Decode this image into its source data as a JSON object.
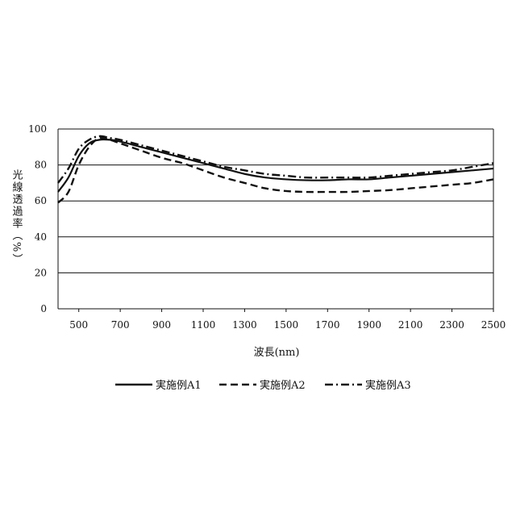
{
  "chart_data": {
    "type": "line",
    "xlabel": "波長(nm)",
    "ylabel": "光線透過率（%）",
    "xlim": [
      400,
      2500
    ],
    "ylim": [
      0,
      100
    ],
    "x_ticks": [
      500,
      700,
      900,
      1100,
      1300,
      1500,
      1700,
      1900,
      2100,
      2300,
      2500
    ],
    "y_ticks": [
      0,
      20,
      40,
      60,
      80,
      100
    ],
    "grid": "horizontal",
    "legend_position": "bottom",
    "x": [
      400,
      450,
      500,
      550,
      600,
      650,
      700,
      800,
      900,
      1000,
      1100,
      1200,
      1300,
      1400,
      1500,
      1600,
      1700,
      1800,
      1900,
      2000,
      2100,
      2200,
      2300,
      2400,
      2500
    ],
    "series": [
      {
        "name": "実施例A1",
        "style": "solid",
        "values": [
          65,
          73,
          85,
          92,
          94,
          94,
          93,
          90,
          87,
          84,
          81,
          78,
          75,
          73,
          72,
          71.5,
          71.5,
          72,
          72,
          73,
          74,
          75,
          76,
          77,
          78
        ]
      },
      {
        "name": "実施例A2",
        "style": "dashed",
        "values": [
          59,
          65,
          80,
          90,
          95,
          94,
          92,
          88,
          84,
          81,
          77,
          73,
          70,
          67,
          65.5,
          65,
          65,
          65,
          65.5,
          66,
          67,
          68,
          69,
          70,
          72
        ]
      },
      {
        "name": "実施例A3",
        "style": "dashdot",
        "values": [
          70,
          78,
          89,
          94,
          96,
          95,
          94,
          91,
          88,
          85,
          82,
          79,
          77,
          75,
          74,
          73,
          73,
          73,
          73,
          74,
          75,
          76,
          77,
          79,
          81
        ]
      }
    ]
  }
}
